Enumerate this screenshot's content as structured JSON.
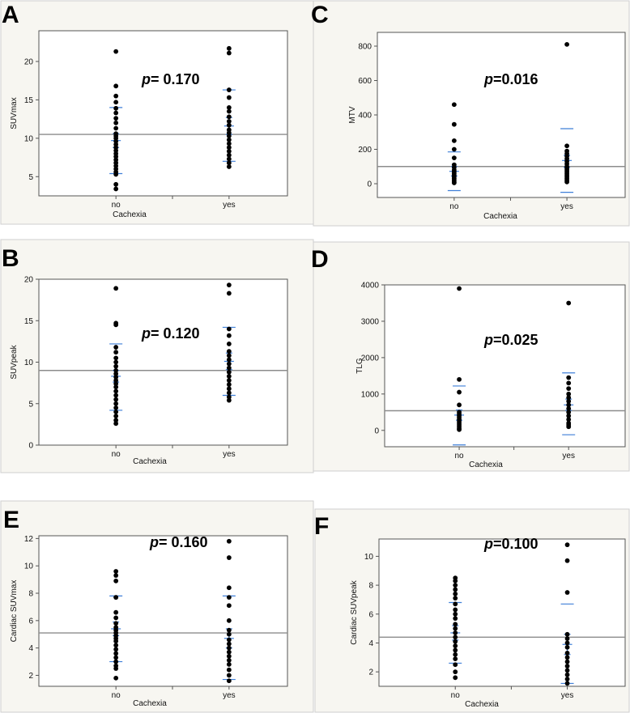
{
  "chart_data": [
    {
      "panel": "A",
      "type": "scatter",
      "ylabel": "SUVmax",
      "xlabel": "Cachexia",
      "categories": [
        "no",
        "yes"
      ],
      "ylim": [
        2.5,
        24
      ],
      "yticks": [
        "5",
        "10",
        "15",
        "20"
      ],
      "ytick_values": [
        5,
        10,
        15,
        20
      ],
      "p_prefix": "p",
      "p_text": "= 0.170",
      "grand_mean": 10.5,
      "series": [
        {
          "name": "no",
          "values": [
            21.3,
            16.8,
            15.5,
            14.7,
            13.9,
            13.3,
            12.6,
            12.0,
            11.3,
            10.6,
            10.3,
            10.0,
            9.6,
            9.2,
            8.8,
            8.4,
            8.0,
            7.6,
            7.2,
            6.8,
            6.4,
            6.0,
            5.6,
            5.3,
            4.0,
            3.4
          ],
          "mean": 9.7,
          "sd_upper": 14.0,
          "sd_lower": 5.4,
          "sem_upper": 10.6,
          "sem_lower": 8.8
        },
        {
          "name": "yes",
          "values": [
            21.7,
            21.1,
            16.3,
            15.3,
            14.0,
            13.5,
            12.8,
            12.2,
            11.7,
            11.1,
            10.7,
            10.3,
            9.8,
            9.3,
            8.8,
            8.3,
            7.8,
            7.3,
            6.8,
            6.3
          ],
          "mean": 11.6,
          "sd_upper": 16.3,
          "sd_lower": 7.0,
          "sem_upper": 12.7,
          "sem_lower": 10.5
        }
      ]
    },
    {
      "panel": "C",
      "type": "scatter",
      "ylabel": "MTV",
      "xlabel": "Cachexia",
      "categories": [
        "no",
        "yes"
      ],
      "ylim": [
        -80,
        880
      ],
      "yticks": [
        "0",
        "200",
        "400",
        "600",
        "800"
      ],
      "ytick_values": [
        0,
        200,
        400,
        600,
        800
      ],
      "p_prefix": "p",
      "p_text": "=0.016",
      "grand_mean": 100,
      "series": [
        {
          "name": "no",
          "values": [
            460,
            345,
            250,
            200,
            150,
            110,
            95,
            80,
            70,
            60,
            50,
            40,
            30,
            20,
            10,
            5
          ],
          "mean": 72,
          "sd_upper": 185,
          "sd_lower": -40,
          "sem_upper": 100,
          "sem_lower": 45
        },
        {
          "name": "yes",
          "values": [
            810,
            220,
            190,
            175,
            160,
            145,
            130,
            115,
            100,
            90,
            80,
            70,
            60,
            50,
            40,
            30,
            20,
            10
          ],
          "mean": 135,
          "sd_upper": 320,
          "sd_lower": -50,
          "sem_upper": 165,
          "sem_lower": 95
        }
      ]
    },
    {
      "panel": "B",
      "type": "scatter",
      "ylabel": "SUVpeak",
      "xlabel": "Cachexia",
      "categories": [
        "no",
        "yes"
      ],
      "ylim": [
        0,
        20
      ],
      "yticks": [
        "0",
        "5",
        "10",
        "15",
        "20"
      ],
      "ytick_values": [
        0,
        5,
        10,
        15,
        20
      ],
      "p_prefix": "p",
      "p_text": "= 0.120",
      "grand_mean": 9.0,
      "series": [
        {
          "name": "no",
          "values": [
            18.9,
            14.7,
            14.5,
            11.8,
            11.2,
            10.5,
            10.0,
            9.5,
            9.0,
            8.6,
            8.2,
            7.8,
            7.4,
            7.0,
            6.5,
            6.0,
            5.5,
            5.0,
            4.5,
            4.0,
            3.5,
            3.0,
            2.6
          ],
          "mean": 8.3,
          "sd_upper": 12.2,
          "sd_lower": 4.2,
          "sem_upper": 9.0,
          "sem_lower": 7.6
        },
        {
          "name": "yes",
          "values": [
            19.3,
            18.3,
            14.0,
            13.2,
            12.2,
            11.3,
            10.8,
            10.3,
            9.8,
            9.3,
            8.8,
            8.3,
            7.8,
            7.3,
            6.8,
            6.3,
            5.8,
            5.4
          ],
          "mean": 10.1,
          "sd_upper": 14.2,
          "sd_lower": 6.0,
          "sem_upper": 11.1,
          "sem_lower": 9.1
        }
      ]
    },
    {
      "panel": "D",
      "type": "scatter",
      "ylabel": "TLG",
      "xlabel": "Cachexia",
      "categories": [
        "no",
        "yes"
      ],
      "ylim": [
        -450,
        4000
      ],
      "yticks": [
        "0",
        "1000",
        "2000",
        "3000",
        "4000"
      ],
      "ytick_values": [
        0,
        1000,
        2000,
        3000,
        4000
      ],
      "p_prefix": "p",
      "p_text": "=0.025",
      "grand_mean": 540,
      "series": [
        {
          "name": "no",
          "values": [
            3900,
            1400,
            1050,
            700,
            500,
            450,
            400,
            350,
            300,
            250,
            200,
            150,
            100,
            50,
            20
          ],
          "mean": 420,
          "sd_upper": 1220,
          "sd_lower": -400,
          "sem_upper": 560,
          "sem_lower": 280
        },
        {
          "name": "yes",
          "values": [
            3500,
            1450,
            1300,
            1150,
            1000,
            900,
            800,
            700,
            600,
            500,
            400,
            300,
            200,
            150,
            100
          ],
          "mean": 700,
          "sd_upper": 1580,
          "sd_lower": -120,
          "sem_upper": 860,
          "sem_lower": 550
        }
      ]
    },
    {
      "panel": "E",
      "type": "scatter",
      "ylabel": "Cardiac SUVmax",
      "xlabel": "Cachexia",
      "categories": [
        "no",
        "yes"
      ],
      "ylim": [
        1.2,
        12.2
      ],
      "yticks": [
        "2",
        "4",
        "6",
        "8",
        "10",
        "12"
      ],
      "ytick_values": [
        2,
        4,
        6,
        8,
        10,
        12
      ],
      "p_prefix": "p",
      "p_text": "= 0.160",
      "grand_mean": 5.1,
      "series": [
        {
          "name": "no",
          "values": [
            9.6,
            9.3,
            8.9,
            7.7,
            7.7,
            6.6,
            6.2,
            5.8,
            5.5,
            5.3,
            5.1,
            4.9,
            4.7,
            4.5,
            4.2,
            3.9,
            3.6,
            3.3,
            3.0,
            2.7,
            2.5,
            1.8
          ],
          "mean": 5.4,
          "sd_upper": 7.8,
          "sd_lower": 3.0,
          "sem_upper": 5.9,
          "sem_lower": 4.9
        },
        {
          "name": "yes",
          "values": [
            11.8,
            10.6,
            8.4,
            7.7,
            7.1,
            6.0,
            5.3,
            5.0,
            4.6,
            4.3,
            4.0,
            3.7,
            3.4,
            3.1,
            2.8,
            2.4,
            2.0,
            1.6
          ],
          "mean": 4.7,
          "sd_upper": 7.8,
          "sd_lower": 1.7,
          "sem_upper": 5.4,
          "sem_lower": 4.0
        }
      ]
    },
    {
      "panel": "F",
      "type": "scatter",
      "ylabel": "Cardiac SUVpeak",
      "xlabel": "Cachexia",
      "categories": [
        "no",
        "yes"
      ],
      "ylim": [
        1.0,
        11.2
      ],
      "yticks": [
        "2",
        "4",
        "6",
        "8",
        "10"
      ],
      "ytick_values": [
        2,
        4,
        6,
        8,
        10
      ],
      "p_prefix": "p",
      "p_text": "=0.100",
      "grand_mean": 4.4,
      "series": [
        {
          "name": "no",
          "values": [
            8.5,
            8.3,
            8.0,
            7.7,
            7.4,
            7.1,
            6.7,
            6.3,
            6.0,
            5.7,
            5.3,
            5.0,
            4.7,
            4.4,
            4.1,
            3.8,
            3.5,
            3.2,
            2.9,
            2.5,
            2.0,
            1.6
          ],
          "mean": 4.7,
          "sd_upper": 6.8,
          "sd_lower": 2.6,
          "sem_upper": 5.2,
          "sem_lower": 4.2
        },
        {
          "name": "yes",
          "values": [
            10.8,
            9.7,
            7.5,
            4.6,
            4.3,
            4.0,
            3.7,
            3.3,
            3.0,
            2.7,
            2.4,
            2.1,
            1.8,
            1.5,
            1.2
          ],
          "mean": 3.9,
          "sd_upper": 6.7,
          "sd_lower": 1.2,
          "sem_upper": 4.6,
          "sem_lower": 3.2
        }
      ]
    }
  ]
}
